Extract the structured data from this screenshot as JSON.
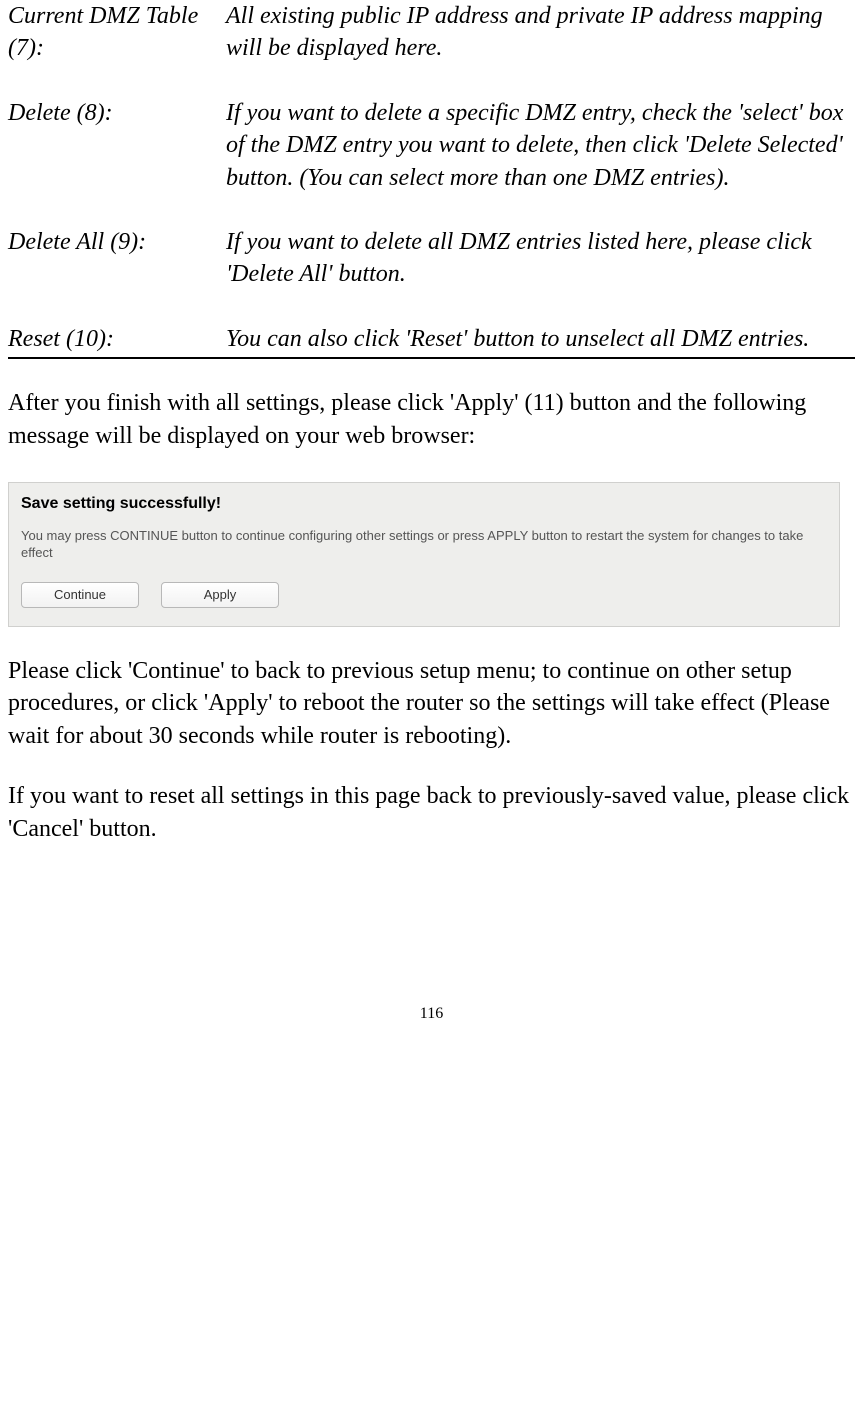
{
  "definitions": [
    {
      "term": "Current DMZ Table (7):",
      "desc": "All existing public IP address and private IP address mapping will be displayed here."
    },
    {
      "term": "Delete (8):",
      "desc": "If you want to delete a specific DMZ entry, check the 'select' box of the DMZ entry you want to delete, then click 'Delete Selected' button. (You can select more than one DMZ entries)."
    },
    {
      "term": "Delete All (9):",
      "desc": "If you want to delete all DMZ entries listed here, please click 'Delete All' button."
    },
    {
      "term": "Reset (10):",
      "desc": "You can also click 'Reset' button to unselect all DMZ entries."
    }
  ],
  "paragraphs": {
    "p1": "After you finish with all settings, please click 'Apply' (11) button and the following message will be displayed on your web browser:",
    "p2": "Please click 'Continue' to back to previous setup menu; to continue on other setup procedures, or click 'Apply' to reboot the router so the settings will take effect (Please wait for about 30 seconds while router is rebooting).",
    "p3": "If you want to reset all settings in this page back to previously-saved value, please click 'Cancel' button."
  },
  "dialog": {
    "title": "Save setting successfully!",
    "text": "You may press CONTINUE button to continue configuring other settings or press APPLY button to restart the system for changes to take effect",
    "continue_label": "Continue",
    "apply_label": "Apply",
    "background_color": "#eeeeec",
    "border_color": "#d0d0ce"
  },
  "page_number": "116"
}
